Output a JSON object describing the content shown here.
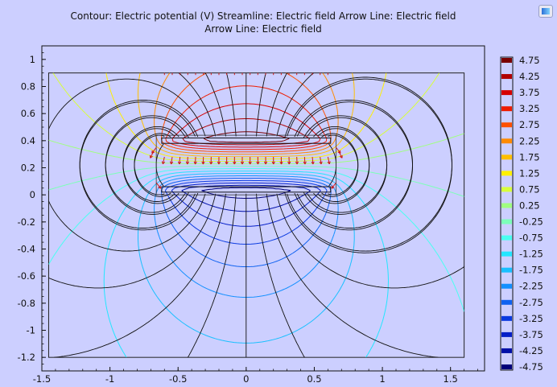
{
  "title": {
    "line1": "Contour: Electric potential (V)  Streamline: Electric field  Arrow Line: Electric field",
    "line2": "Arrow Line: Electric field"
  },
  "icon": "app-logo-icon",
  "colors": {
    "background": "#cccfff",
    "plot_background": "#cccfff",
    "frame": "#111111",
    "field_line": "#111111"
  },
  "chart_data": {
    "type": "contour",
    "title": "Contour: Electric potential (V)  Streamline: Electric field  Arrow Line: Electric field / Arrow Line: Electric field",
    "xlim": [
      -1.5,
      1.75
    ],
    "ylim": [
      -1.3,
      1.1
    ],
    "x_ticks": [
      -1.5,
      -1,
      -0.5,
      0,
      0.5,
      1,
      1.5
    ],
    "x_tick_labels": [
      "-1.5",
      "-1",
      "-0.5",
      "0",
      "0.5",
      "1",
      "1.5"
    ],
    "y_ticks": [
      1,
      0.8,
      0.6,
      0.4,
      0.2,
      0,
      -0.2,
      -0.4,
      -0.6,
      -0.8,
      -1,
      -1.2
    ],
    "y_tick_labels": [
      "1",
      "0.8",
      "0.6",
      "0.4",
      "0.2",
      "0",
      "-0.2",
      "-0.4",
      "-0.6",
      "-0.8",
      "-1",
      "-1.2"
    ],
    "domain": {
      "x": [
        -1.45,
        1.6
      ],
      "y": [
        -1.2,
        0.9
      ]
    },
    "upper_plate": {
      "x": [
        -0.62,
        0.62
      ],
      "y": [
        0.38,
        0.42
      ],
      "potential": 5
    },
    "lower_plate": {
      "x": [
        -0.62,
        0.62
      ],
      "y": [
        0.02,
        0.06
      ],
      "potential": -5
    },
    "legend": {
      "levels": [
        4.75,
        4.25,
        3.75,
        3.25,
        2.75,
        2.25,
        1.75,
        1.25,
        0.75,
        0.25,
        -0.25,
        -0.75,
        -1.25,
        -1.75,
        -2.25,
        -2.75,
        -3.25,
        -3.75,
        -4.25,
        -4.75
      ],
      "labels": [
        "4.75",
        "4.25",
        "3.75",
        "3.25",
        "2.75",
        "2.25",
        "1.75",
        "1.25",
        "0.75",
        "0.25",
        "-0.25",
        "-0.75",
        "-1.25",
        "-1.75",
        "-2.25",
        "-2.75",
        "-3.25",
        "-3.75",
        "-4.25",
        "-4.75"
      ],
      "colors": [
        "#7a0000",
        "#b00000",
        "#d60000",
        "#ee1c00",
        "#ff5000",
        "#ff8a00",
        "#ffbf00",
        "#fff000",
        "#d8ff3a",
        "#a0ff80",
        "#7dffb8",
        "#4afff0",
        "#22e6ff",
        "#19c0ff",
        "#1490ff",
        "#0f62f0",
        "#0a3ae0",
        "#0620c8",
        "#0010a8",
        "#00007a"
      ]
    }
  }
}
